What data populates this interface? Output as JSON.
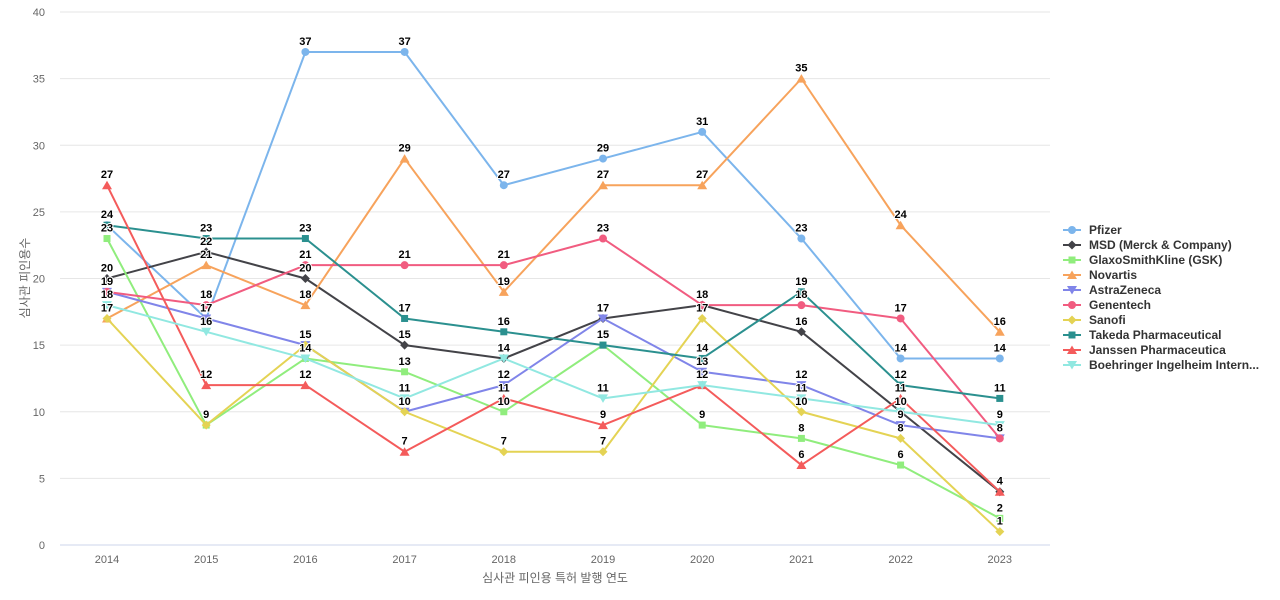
{
  "chart_data": {
    "type": "line",
    "x": [
      2014,
      2015,
      2016,
      2017,
      2018,
      2019,
      2020,
      2021,
      2022,
      2023
    ],
    "xlabel": "심사관 피인용 특허 발행 연도",
    "ylabel": "심사관 피인용수",
    "ylim": [
      0,
      40
    ],
    "ytick_step": 5,
    "grid": true,
    "legend_position": "right",
    "colors": {
      "background": "#ffffff",
      "grid": "#e6e6e6",
      "axis_line": "#ccd6eb",
      "tick_label": "#666666",
      "axis_title": "#666666",
      "data_label": "#000000",
      "legend_text": "#333333"
    },
    "series": [
      {
        "name": "Pfizer",
        "color": "#7cb5ec",
        "marker": "circle",
        "values": [
          24,
          17,
          37,
          37,
          27,
          29,
          31,
          23,
          14,
          14
        ]
      },
      {
        "name": "MSD (Merck & Company)",
        "color": "#434348",
        "marker": "diamond",
        "values": [
          20,
          22,
          20,
          15,
          14,
          17,
          18,
          16,
          10,
          4
        ]
      },
      {
        "name": "GlaxoSmithKline (GSK)",
        "color": "#90ed7d",
        "marker": "square",
        "values": [
          23,
          9,
          14,
          13,
          10,
          15,
          9,
          8,
          6,
          2
        ]
      },
      {
        "name": "Novartis",
        "color": "#f7a35c",
        "marker": "triangle",
        "values": [
          17,
          21,
          18,
          29,
          19,
          27,
          27,
          35,
          24,
          16
        ]
      },
      {
        "name": "AstraZeneca",
        "color": "#8085e9",
        "marker": "triangle-down",
        "values": [
          19,
          17,
          15,
          10,
          12,
          17,
          13,
          12,
          9,
          8
        ]
      },
      {
        "name": "Genentech",
        "color": "#f15c80",
        "marker": "circle",
        "values": [
          19,
          18,
          21,
          21,
          21,
          23,
          18,
          18,
          17,
          8
        ]
      },
      {
        "name": "Sanofi",
        "color": "#e4d354",
        "marker": "diamond",
        "values": [
          17,
          9,
          15,
          10,
          7,
          7,
          17,
          10,
          8,
          1
        ]
      },
      {
        "name": "Takeda Pharmaceutical",
        "color": "#2b908f",
        "marker": "square",
        "values": [
          24,
          23,
          23,
          17,
          16,
          15,
          14,
          19,
          12,
          11
        ]
      },
      {
        "name": "Janssen Pharmaceutica",
        "color": "#f45b5b",
        "marker": "triangle",
        "values": [
          27,
          12,
          12,
          7,
          11,
          9,
          12,
          6,
          11,
          4
        ]
      },
      {
        "name": "Boehringer Ingelheim Intern...",
        "color": "#91e8e1",
        "marker": "triangle-down",
        "values": [
          18,
          16,
          14,
          11,
          14,
          11,
          12,
          11,
          10,
          9
        ]
      }
    ]
  }
}
